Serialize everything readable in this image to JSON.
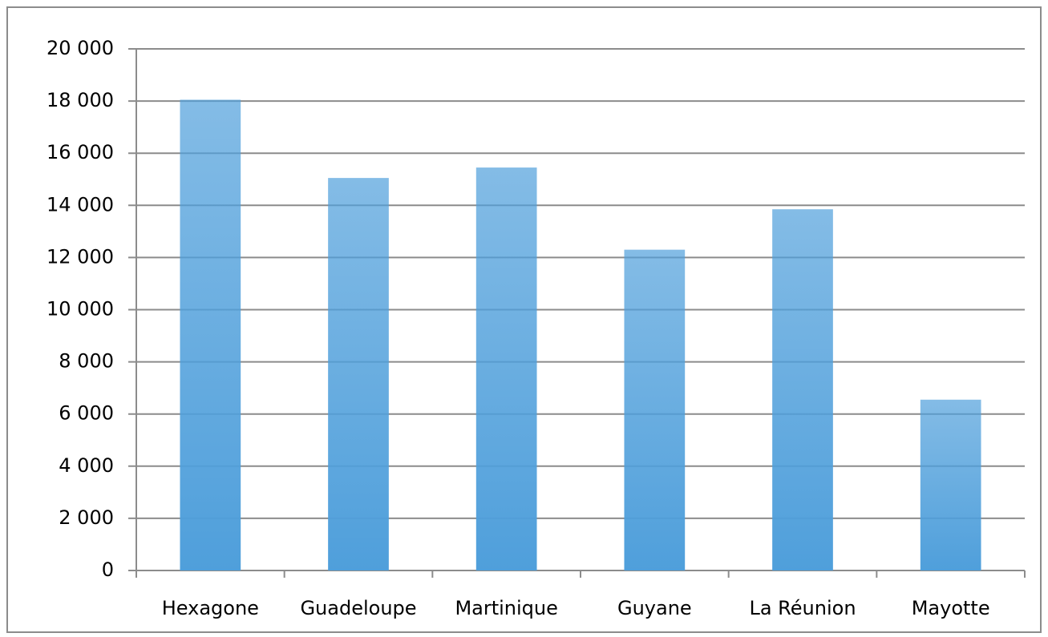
{
  "chart_data": {
    "type": "bar",
    "categories": [
      "Hexagone",
      "Guadeloupe",
      "Martinique",
      "Guyane",
      "La Réunion",
      "Mayotte"
    ],
    "values": [
      18050,
      15050,
      15450,
      12300,
      13850,
      6550
    ],
    "color": "#4f9fdb",
    "ylim": [
      0,
      20000
    ],
    "yticks": [
      0,
      {
        "value": 2000,
        "label": "2 000"
      },
      {
        "value": 4000,
        "label": "4 000"
      },
      {
        "value": 6000,
        "label": "6 000"
      },
      {
        "value": 8000,
        "label": "8 000"
      },
      {
        "value": 10000,
        "label": "10 000"
      },
      {
        "value": 12000,
        "label": "12 000"
      },
      {
        "value": 14000,
        "label": "14 000"
      },
      {
        "value": 16000,
        "label": "16 000"
      },
      {
        "value": 18000,
        "label": "18 000"
      },
      {
        "value": 20000,
        "label": "20 000"
      }
    ],
    "grid": true
  }
}
